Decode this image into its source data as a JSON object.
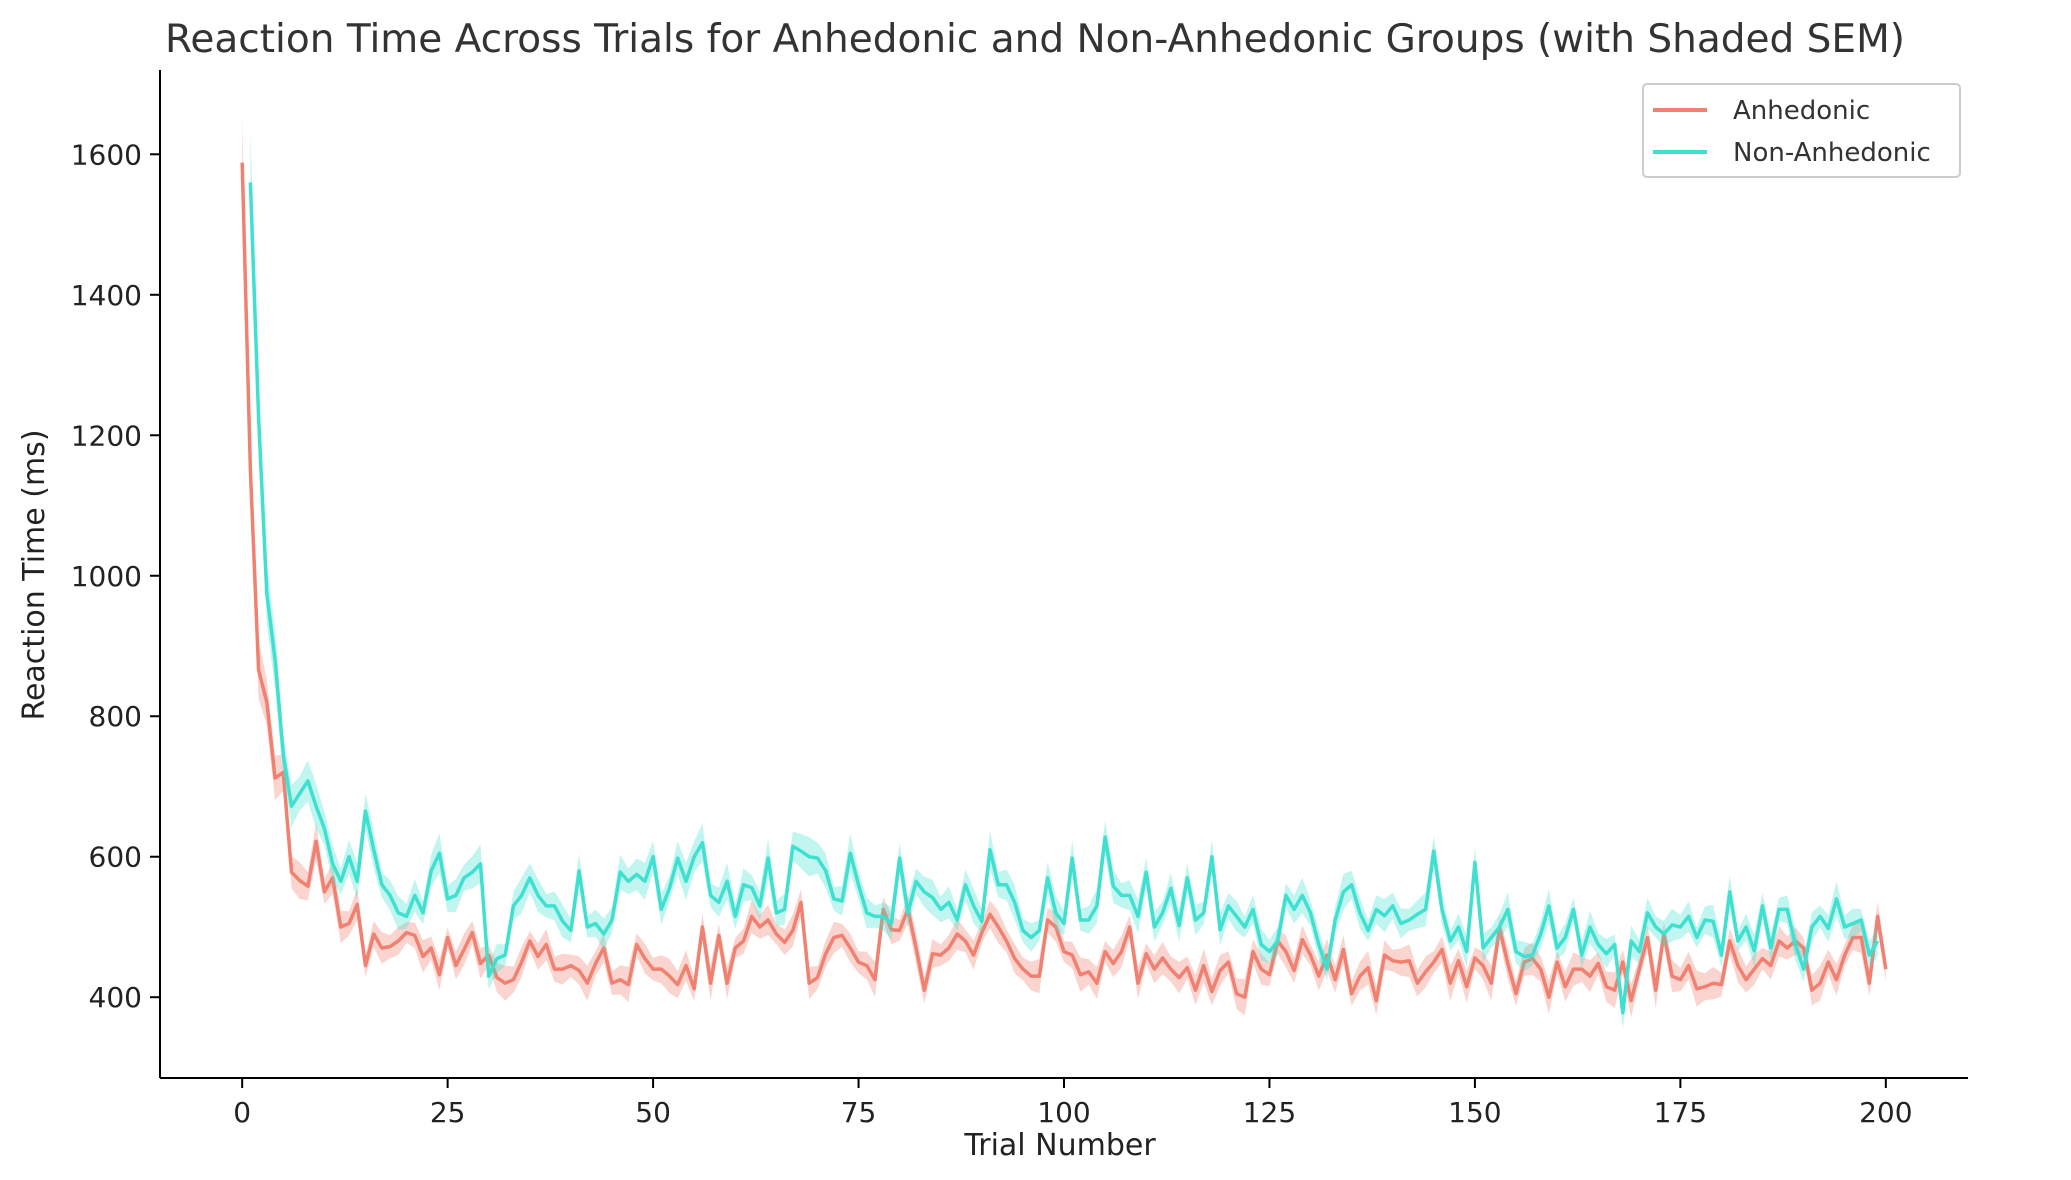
{
  "chart_data": {
    "type": "line",
    "title": "Reaction Time Across Trials for Anhedonic and Non-Anhedonic Groups (with Shaded SEM)",
    "xlabel": "Trial Number",
    "ylabel": "Reaction Time (ms)",
    "xlim": [
      -10,
      210
    ],
    "ylim": [
      285,
      1720
    ],
    "xticks": [
      0,
      25,
      50,
      75,
      100,
      125,
      150,
      175,
      200
    ],
    "yticks": [
      400,
      600,
      800,
      1000,
      1200,
      1400,
      1600
    ],
    "grid": false,
    "legend_position": "top-right",
    "series": [
      {
        "name": "Anhedonic",
        "color": "#f08070",
        "x_start": 0,
        "values": [
          1588,
          1150,
          866,
          820,
          712,
          720,
          578,
          566,
          558,
          622,
          550,
          570,
          500,
          505,
          532,
          445,
          490,
          470,
          472,
          480,
          492,
          488,
          458,
          470,
          432,
          485,
          445,
          468,
          492,
          448,
          460,
          428,
          420,
          425,
          450,
          480,
          458,
          475,
          440,
          440,
          445,
          438,
          420,
          448,
          470,
          420,
          425,
          418,
          475,
          455,
          440,
          440,
          430,
          418,
          445,
          412,
          500,
          420,
          488,
          420,
          470,
          480,
          515,
          500,
          510,
          490,
          478,
          495,
          535,
          420,
          428,
          462,
          485,
          488,
          470,
          450,
          445,
          425,
          525,
          496,
          495,
          525,
          470,
          410,
          462,
          460,
          470,
          490,
          480,
          460,
          492,
          518,
          500,
          480,
          455,
          440,
          430,
          430,
          510,
          500,
          465,
          460,
          432,
          436,
          420,
          465,
          448,
          465,
          500,
          420,
          462,
          440,
          456,
          440,
          428,
          442,
          410,
          445,
          408,
          438,
          450,
          405,
          400,
          465,
          440,
          432,
          480,
          465,
          438,
          482,
          460,
          430,
          460,
          425,
          468,
          405,
          430,
          442,
          395,
          460,
          452,
          450,
          452,
          420,
          436,
          450,
          468,
          420,
          452,
          415,
          456,
          445,
          420,
          498,
          448,
          405,
          450,
          455,
          440,
          400,
          450,
          415,
          440,
          440,
          430,
          448,
          415,
          410,
          450,
          395,
          440,
          485,
          410,
          490,
          430,
          425,
          445,
          412,
          415,
          420,
          418,
          480,
          445,
          425,
          440,
          455,
          445,
          480,
          470,
          480,
          470,
          410,
          420,
          450,
          425,
          460,
          485,
          485,
          420,
          515,
          440
        ]
      },
      {
        "name": "Non-Anhedonic",
        "color": "#40e0d0",
        "x_start": 1,
        "values": [
          1560,
          1225,
          975,
          880,
          745,
          672,
          690,
          708,
          672,
          640,
          590,
          565,
          600,
          565,
          665,
          610,
          560,
          545,
          520,
          515,
          545,
          520,
          580,
          605,
          540,
          545,
          570,
          578,
          590,
          430,
          455,
          460,
          530,
          545,
          570,
          545,
          530,
          530,
          508,
          495,
          580,
          500,
          505,
          490,
          510,
          578,
          565,
          575,
          565,
          600,
          525,
          555,
          598,
          565,
          600,
          620,
          545,
          535,
          565,
          515,
          560,
          556,
          530,
          598,
          520,
          525,
          615,
          608,
          600,
          598,
          580,
          540,
          537,
          605,
          560,
          520,
          515,
          515,
          505,
          598,
          520,
          565,
          550,
          542,
          525,
          535,
          510,
          560,
          530,
          508,
          610,
          560,
          560,
          535,
          495,
          485,
          495,
          570,
          520,
          505,
          598,
          510,
          510,
          530,
          628,
          558,
          545,
          545,
          515,
          578,
          500,
          520,
          555,
          502,
          570,
          510,
          520,
          600,
          496,
          530,
          515,
          500,
          525,
          475,
          465,
          480,
          545,
          525,
          545,
          520,
          475,
          440,
          510,
          550,
          560,
          520,
          495,
          525,
          516,
          530,
          505,
          510,
          518,
          525,
          608,
          525,
          480,
          500,
          465,
          592,
          470,
          485,
          500,
          525,
          465,
          458,
          460,
          490,
          530,
          470,
          485,
          525,
          460,
          500,
          475,
          462,
          475,
          378,
          480,
          465,
          520,
          500,
          490,
          503,
          500,
          515,
          485,
          510,
          508,
          460,
          550,
          480,
          500,
          466,
          530,
          470,
          525,
          525,
          475,
          440,
          500,
          515,
          498,
          540,
          500,
          505,
          510,
          460,
          480
        ]
      }
    ]
  }
}
